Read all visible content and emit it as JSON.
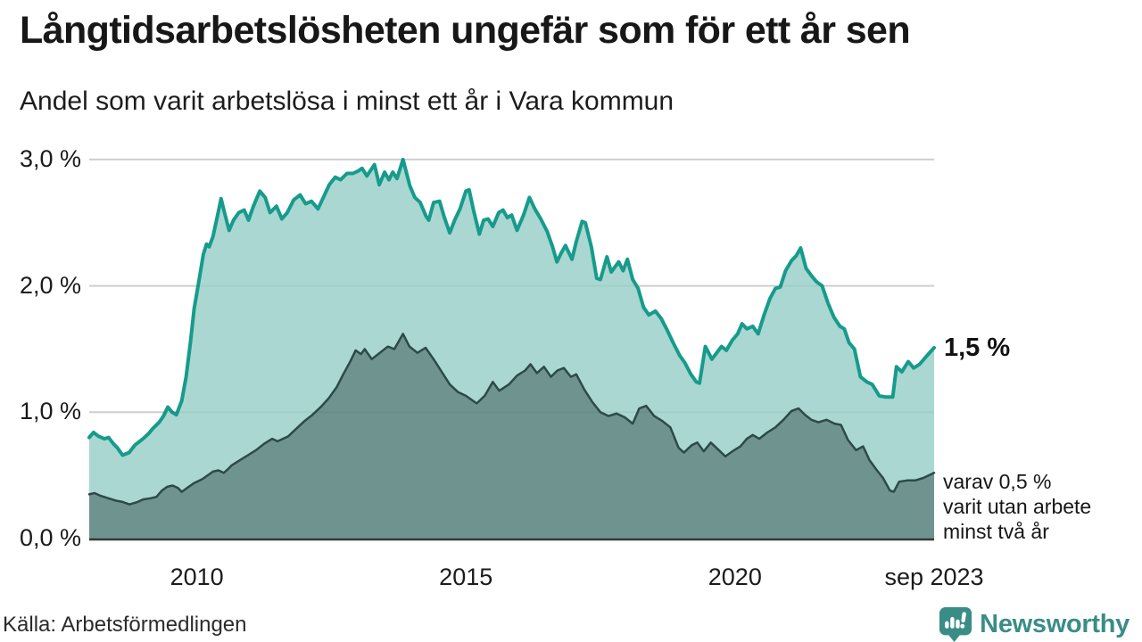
{
  "header": {
    "title": "Långtidsarbetslösheten ungefär som för ett år sen",
    "subtitle": "Andel som varit arbetslösa i minst ett år i Vara kommun"
  },
  "chart_data": {
    "type": "area",
    "unit": "%",
    "grid": true,
    "x_axis": {
      "range": [
        2008.0,
        2023.7
      ],
      "ticks": [
        {
          "label": "2010",
          "year": 2010
        },
        {
          "label": "2015",
          "year": 2015
        },
        {
          "label": "2020",
          "year": 2020
        },
        {
          "label": "sep 2023",
          "year": 2023.7
        }
      ]
    },
    "y_axis": {
      "range": [
        0,
        3
      ],
      "ticks": [
        {
          "label": "0,0 %",
          "value": 0
        },
        {
          "label": "1,0 %",
          "value": 1
        },
        {
          "label": "2,0 %",
          "value": 2
        },
        {
          "label": "3,0 %",
          "value": 3
        }
      ]
    },
    "series": [
      {
        "name": "Arbetslösa minst ett år",
        "line_color": "#169b8c",
        "fill_color": "#aad7d1",
        "line_width": 4,
        "points": [
          [
            2008.0,
            0.8
          ],
          [
            2008.08,
            0.84
          ],
          [
            2008.17,
            0.81
          ],
          [
            2008.28,
            0.79
          ],
          [
            2008.36,
            0.8
          ],
          [
            2008.45,
            0.75
          ],
          [
            2008.52,
            0.72
          ],
          [
            2008.62,
            0.66
          ],
          [
            2008.74,
            0.68
          ],
          [
            2008.85,
            0.74
          ],
          [
            2009.0,
            0.79
          ],
          [
            2009.1,
            0.83
          ],
          [
            2009.18,
            0.87
          ],
          [
            2009.3,
            0.92
          ],
          [
            2009.38,
            0.97
          ],
          [
            2009.46,
            1.04
          ],
          [
            2009.54,
            1.0
          ],
          [
            2009.62,
            0.98
          ],
          [
            2009.72,
            1.09
          ],
          [
            2009.8,
            1.28
          ],
          [
            2009.88,
            1.55
          ],
          [
            2009.95,
            1.82
          ],
          [
            2010.05,
            2.07
          ],
          [
            2010.12,
            2.25
          ],
          [
            2010.18,
            2.33
          ],
          [
            2010.23,
            2.31
          ],
          [
            2010.3,
            2.39
          ],
          [
            2010.38,
            2.55
          ],
          [
            2010.45,
            2.69
          ],
          [
            2010.52,
            2.57
          ],
          [
            2010.6,
            2.44
          ],
          [
            2010.68,
            2.52
          ],
          [
            2010.78,
            2.58
          ],
          [
            2010.88,
            2.6
          ],
          [
            2010.96,
            2.52
          ],
          [
            2011.05,
            2.63
          ],
          [
            2011.17,
            2.75
          ],
          [
            2011.27,
            2.7
          ],
          [
            2011.36,
            2.58
          ],
          [
            2011.48,
            2.63
          ],
          [
            2011.58,
            2.53
          ],
          [
            2011.68,
            2.58
          ],
          [
            2011.8,
            2.68
          ],
          [
            2011.92,
            2.72
          ],
          [
            2012.02,
            2.65
          ],
          [
            2012.13,
            2.67
          ],
          [
            2012.25,
            2.61
          ],
          [
            2012.34,
            2.69
          ],
          [
            2012.46,
            2.8
          ],
          [
            2012.57,
            2.86
          ],
          [
            2012.67,
            2.84
          ],
          [
            2012.79,
            2.89
          ],
          [
            2012.9,
            2.89
          ],
          [
            2013.0,
            2.91
          ],
          [
            2013.07,
            2.93
          ],
          [
            2013.16,
            2.87
          ],
          [
            2013.3,
            2.96
          ],
          [
            2013.39,
            2.8
          ],
          [
            2013.49,
            2.9
          ],
          [
            2013.57,
            2.84
          ],
          [
            2013.64,
            2.9
          ],
          [
            2013.72,
            2.85
          ],
          [
            2013.83,
            3.0
          ],
          [
            2013.96,
            2.79
          ],
          [
            2014.05,
            2.7
          ],
          [
            2014.15,
            2.66
          ],
          [
            2014.26,
            2.55
          ],
          [
            2014.31,
            2.52
          ],
          [
            2014.4,
            2.66
          ],
          [
            2014.51,
            2.67
          ],
          [
            2014.6,
            2.54
          ],
          [
            2014.7,
            2.42
          ],
          [
            2014.79,
            2.52
          ],
          [
            2014.89,
            2.61
          ],
          [
            2015.0,
            2.75
          ],
          [
            2015.06,
            2.76
          ],
          [
            2015.14,
            2.6
          ],
          [
            2015.25,
            2.41
          ],
          [
            2015.33,
            2.52
          ],
          [
            2015.41,
            2.53
          ],
          [
            2015.5,
            2.47
          ],
          [
            2015.61,
            2.58
          ],
          [
            2015.69,
            2.6
          ],
          [
            2015.77,
            2.54
          ],
          [
            2015.85,
            2.56
          ],
          [
            2015.95,
            2.44
          ],
          [
            2016.07,
            2.56
          ],
          [
            2016.18,
            2.7
          ],
          [
            2016.28,
            2.61
          ],
          [
            2016.39,
            2.53
          ],
          [
            2016.51,
            2.43
          ],
          [
            2016.61,
            2.31
          ],
          [
            2016.69,
            2.19
          ],
          [
            2016.77,
            2.26
          ],
          [
            2016.85,
            2.32
          ],
          [
            2016.97,
            2.21
          ],
          [
            2017.05,
            2.35
          ],
          [
            2017.16,
            2.51
          ],
          [
            2017.22,
            2.5
          ],
          [
            2017.33,
            2.31
          ],
          [
            2017.43,
            2.06
          ],
          [
            2017.5,
            2.05
          ],
          [
            2017.62,
            2.23
          ],
          [
            2017.7,
            2.11
          ],
          [
            2017.84,
            2.19
          ],
          [
            2017.92,
            2.12
          ],
          [
            2018.0,
            2.21
          ],
          [
            2018.1,
            2.05
          ],
          [
            2018.2,
            1.98
          ],
          [
            2018.3,
            1.83
          ],
          [
            2018.4,
            1.77
          ],
          [
            2018.52,
            1.8
          ],
          [
            2018.63,
            1.74
          ],
          [
            2018.74,
            1.65
          ],
          [
            2018.85,
            1.55
          ],
          [
            2018.97,
            1.45
          ],
          [
            2019.07,
            1.39
          ],
          [
            2019.18,
            1.3
          ],
          [
            2019.28,
            1.24
          ],
          [
            2019.34,
            1.23
          ],
          [
            2019.45,
            1.52
          ],
          [
            2019.57,
            1.42
          ],
          [
            2019.66,
            1.47
          ],
          [
            2019.75,
            1.52
          ],
          [
            2019.84,
            1.49
          ],
          [
            2019.95,
            1.57
          ],
          [
            2020.05,
            1.62
          ],
          [
            2020.13,
            1.7
          ],
          [
            2020.22,
            1.66
          ],
          [
            2020.33,
            1.68
          ],
          [
            2020.43,
            1.62
          ],
          [
            2020.54,
            1.77
          ],
          [
            2020.65,
            1.9
          ],
          [
            2020.75,
            1.98
          ],
          [
            2020.84,
            1.99
          ],
          [
            2020.94,
            2.12
          ],
          [
            2021.05,
            2.2
          ],
          [
            2021.14,
            2.24
          ],
          [
            2021.22,
            2.3
          ],
          [
            2021.32,
            2.14
          ],
          [
            2021.42,
            2.08
          ],
          [
            2021.52,
            2.03
          ],
          [
            2021.62,
            2.0
          ],
          [
            2021.73,
            1.86
          ],
          [
            2021.84,
            1.75
          ],
          [
            2021.95,
            1.68
          ],
          [
            2022.03,
            1.66
          ],
          [
            2022.12,
            1.55
          ],
          [
            2022.22,
            1.5
          ],
          [
            2022.33,
            1.28
          ],
          [
            2022.45,
            1.24
          ],
          [
            2022.55,
            1.22
          ],
          [
            2022.68,
            1.13
          ],
          [
            2022.8,
            1.12
          ],
          [
            2022.93,
            1.12
          ],
          [
            2023.0,
            1.36
          ],
          [
            2023.1,
            1.32
          ],
          [
            2023.22,
            1.4
          ],
          [
            2023.32,
            1.35
          ],
          [
            2023.43,
            1.38
          ],
          [
            2023.55,
            1.44
          ],
          [
            2023.7,
            1.51
          ]
        ]
      },
      {
        "name": "Utan arbete minst två år",
        "line_color": "#2c4a47",
        "fill_color": "#6f9490",
        "line_width": 2.5,
        "points": [
          [
            2008.0,
            0.35
          ],
          [
            2008.1,
            0.36
          ],
          [
            2008.2,
            0.34
          ],
          [
            2008.35,
            0.32
          ],
          [
            2008.5,
            0.3
          ],
          [
            2008.62,
            0.29
          ],
          [
            2008.75,
            0.27
          ],
          [
            2008.9,
            0.29
          ],
          [
            2009.0,
            0.31
          ],
          [
            2009.15,
            0.32
          ],
          [
            2009.25,
            0.33
          ],
          [
            2009.35,
            0.38
          ],
          [
            2009.45,
            0.41
          ],
          [
            2009.55,
            0.42
          ],
          [
            2009.65,
            0.4
          ],
          [
            2009.72,
            0.37
          ],
          [
            2009.85,
            0.41
          ],
          [
            2009.95,
            0.44
          ],
          [
            2010.1,
            0.47
          ],
          [
            2010.2,
            0.5
          ],
          [
            2010.3,
            0.53
          ],
          [
            2010.4,
            0.54
          ],
          [
            2010.5,
            0.52
          ],
          [
            2010.58,
            0.55
          ],
          [
            2010.65,
            0.58
          ],
          [
            2010.8,
            0.62
          ],
          [
            2010.95,
            0.66
          ],
          [
            2011.1,
            0.7
          ],
          [
            2011.25,
            0.75
          ],
          [
            2011.4,
            0.79
          ],
          [
            2011.5,
            0.77
          ],
          [
            2011.6,
            0.79
          ],
          [
            2011.7,
            0.81
          ],
          [
            2011.85,
            0.87
          ],
          [
            2012.0,
            0.93
          ],
          [
            2012.15,
            0.98
          ],
          [
            2012.3,
            1.04
          ],
          [
            2012.45,
            1.11
          ],
          [
            2012.6,
            1.2
          ],
          [
            2012.72,
            1.3
          ],
          [
            2012.85,
            1.4
          ],
          [
            2012.95,
            1.49
          ],
          [
            2013.05,
            1.46
          ],
          [
            2013.12,
            1.5
          ],
          [
            2013.25,
            1.42
          ],
          [
            2013.4,
            1.47
          ],
          [
            2013.55,
            1.52
          ],
          [
            2013.67,
            1.5
          ],
          [
            2013.83,
            1.62
          ],
          [
            2013.95,
            1.52
          ],
          [
            2014.1,
            1.47
          ],
          [
            2014.25,
            1.51
          ],
          [
            2014.4,
            1.42
          ],
          [
            2014.55,
            1.32
          ],
          [
            2014.7,
            1.22
          ],
          [
            2014.85,
            1.16
          ],
          [
            2015.0,
            1.13
          ],
          [
            2015.2,
            1.07
          ],
          [
            2015.35,
            1.13
          ],
          [
            2015.5,
            1.24
          ],
          [
            2015.62,
            1.17
          ],
          [
            2015.8,
            1.22
          ],
          [
            2015.95,
            1.29
          ],
          [
            2016.1,
            1.33
          ],
          [
            2016.2,
            1.38
          ],
          [
            2016.32,
            1.31
          ],
          [
            2016.45,
            1.36
          ],
          [
            2016.58,
            1.28
          ],
          [
            2016.7,
            1.33
          ],
          [
            2016.82,
            1.35
          ],
          [
            2016.95,
            1.28
          ],
          [
            2017.05,
            1.3
          ],
          [
            2017.2,
            1.18
          ],
          [
            2017.35,
            1.08
          ],
          [
            2017.5,
            1.0
          ],
          [
            2017.65,
            0.97
          ],
          [
            2017.8,
            0.99
          ],
          [
            2017.95,
            0.96
          ],
          [
            2018.1,
            0.91
          ],
          [
            2018.22,
            1.03
          ],
          [
            2018.35,
            1.05
          ],
          [
            2018.5,
            0.97
          ],
          [
            2018.65,
            0.93
          ],
          [
            2018.8,
            0.88
          ],
          [
            2018.95,
            0.72
          ],
          [
            2019.05,
            0.68
          ],
          [
            2019.2,
            0.74
          ],
          [
            2019.3,
            0.76
          ],
          [
            2019.42,
            0.69
          ],
          [
            2019.55,
            0.76
          ],
          [
            2019.7,
            0.7
          ],
          [
            2019.82,
            0.65
          ],
          [
            2019.95,
            0.69
          ],
          [
            2020.1,
            0.73
          ],
          [
            2020.22,
            0.79
          ],
          [
            2020.33,
            0.82
          ],
          [
            2020.45,
            0.79
          ],
          [
            2020.6,
            0.84
          ],
          [
            2020.75,
            0.88
          ],
          [
            2020.9,
            0.94
          ],
          [
            2021.05,
            1.01
          ],
          [
            2021.18,
            1.03
          ],
          [
            2021.3,
            0.98
          ],
          [
            2021.42,
            0.94
          ],
          [
            2021.55,
            0.92
          ],
          [
            2021.7,
            0.94
          ],
          [
            2021.85,
            0.91
          ],
          [
            2021.97,
            0.9
          ],
          [
            2022.1,
            0.78
          ],
          [
            2022.25,
            0.7
          ],
          [
            2022.38,
            0.73
          ],
          [
            2022.5,
            0.62
          ],
          [
            2022.62,
            0.55
          ],
          [
            2022.75,
            0.48
          ],
          [
            2022.88,
            0.38
          ],
          [
            2022.95,
            0.37
          ],
          [
            2023.05,
            0.45
          ],
          [
            2023.2,
            0.46
          ],
          [
            2023.35,
            0.46
          ],
          [
            2023.5,
            0.48
          ],
          [
            2023.6,
            0.5
          ],
          [
            2023.7,
            0.52
          ]
        ]
      }
    ],
    "annotations": {
      "latest_value": "1,5 %",
      "note": "varav 0,5 %\nvarit utan arbete\nminst två år"
    }
  },
  "footer": {
    "source": "Källa: Arbetsförmedlingen",
    "logo_text": "Newsworthy"
  },
  "colors": {
    "accent_line": "#169b8c",
    "accent_fill": "#aad7d1",
    "dark_line": "#2c4a47",
    "dark_fill": "#6f9490",
    "grid": "#d8d8d8",
    "axis": "#383838",
    "logo": "#3a8d87"
  }
}
